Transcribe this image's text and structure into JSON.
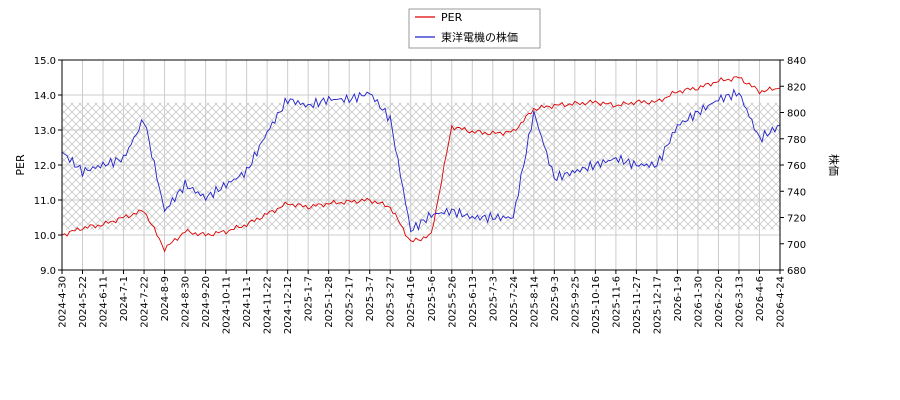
{
  "chart_data": {
    "type": "line",
    "x_ticks": [
      "2024-4-30",
      "2024-5-22",
      "2024-6-11",
      "2024-7-1",
      "2024-7-22",
      "2024-8-9",
      "2024-8-30",
      "2024-9-20",
      "2024-10-11",
      "2024-11-1",
      "2024-11-22",
      "2024-12-12",
      "2025-1-7",
      "2025-1-28",
      "2025-2-17",
      "2025-3-7",
      "2025-3-27",
      "2025-4-16",
      "2025-5-6",
      "2025-5-26",
      "2025-6-13",
      "2025-7-3",
      "2025-7-24",
      "2025-8-14",
      "2025-9-3",
      "2025-9-25",
      "2025-10-16",
      "2025-11-6",
      "2025-11-27",
      "2025-12-17",
      "2026-1-9",
      "2026-1-30",
      "2026-2-20",
      "2026-3-13",
      "2026-4-6",
      "2026-4-24"
    ],
    "ylabel": "PER",
    "y2label": "株価",
    "ylim": [
      9.0,
      15.0
    ],
    "y2lim": [
      680,
      840
    ],
    "y_ticks": [
      "9.0",
      "10.0",
      "11.0",
      "12.0",
      "13.0",
      "14.0",
      "15.0"
    ],
    "y2_ticks": [
      "680",
      "700",
      "720",
      "740",
      "760",
      "780",
      "800",
      "820",
      "840"
    ],
    "grid": true,
    "legend_position": "top-center",
    "hatch_band": [
      10.15,
      13.78
    ],
    "series": [
      {
        "name": "PER",
        "color": "#dd0000",
        "axis": "left",
        "values": [
          10.0,
          10.2,
          10.3,
          10.5,
          10.7,
          9.6,
          10.1,
          10.0,
          10.1,
          10.3,
          10.6,
          10.9,
          10.8,
          10.9,
          10.95,
          11.0,
          10.8,
          9.8,
          10.0,
          13.1,
          12.95,
          12.9,
          12.95,
          13.6,
          13.7,
          13.75,
          13.8,
          13.7,
          13.8,
          13.8,
          14.1,
          14.2,
          14.4,
          14.5,
          14.1,
          14.2
        ]
      },
      {
        "name": "東洋電機の株価",
        "color": "#2222cc",
        "axis": "right",
        "values": [
          770,
          755,
          760,
          765,
          795,
          725,
          745,
          735,
          745,
          755,
          785,
          810,
          805,
          810,
          810,
          815,
          795,
          710,
          722,
          725,
          720,
          720,
          720,
          800,
          750,
          755,
          760,
          765,
          760,
          760,
          790,
          800,
          810,
          815,
          780,
          790
        ]
      }
    ]
  }
}
